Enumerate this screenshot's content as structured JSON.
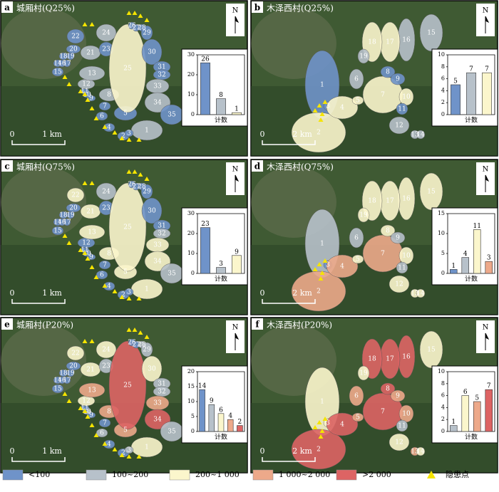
{
  "panels": [
    {
      "label": "a",
      "title": "城厢村(Q25%)",
      "north": "N",
      "scale": [
        "0",
        "1 km"
      ],
      "zone_labels": [
        "1",
        "2",
        "3",
        "4",
        "5",
        "6",
        "7",
        "8",
        "9",
        "10",
        "11",
        "12",
        "13",
        "14",
        "15",
        "16",
        "17",
        "18",
        "19",
        "20",
        "21",
        "22",
        "23",
        "24",
        "25",
        "26",
        "27",
        "28",
        "29",
        "30",
        "31",
        "32",
        "33",
        "34",
        "35"
      ],
      "zone_colors": [
        "#b7c1ca",
        "#6f93c9",
        "#6f93c9",
        "#6f93c9",
        "#6f93c9",
        "#6f93c9",
        "#6f93c9",
        "#b7c1ca",
        "#6f93c9",
        "#6f93c9",
        "#6f93c9",
        "#b7c1ca",
        "#b7c1ca",
        "#6f93c9",
        "#6f93c9",
        "#6f93c9",
        "#6f93c9",
        "#6f93c9",
        "#6f93c9",
        "#6f93c9",
        "#b7c1ca",
        "#6f93c9",
        "#6f93c9",
        "#b7c1ca",
        "#fbf6cc",
        "#6f93c9",
        "#6f93c9",
        "#6f93c9",
        "#6f93c9",
        "#6f93c9",
        "#6f93c9",
        "#6f93c9",
        "#b7c1ca",
        "#b7c1ca",
        "#6f93c9"
      ],
      "chart": {
        "type": "bar",
        "values": [
          26,
          8,
          1
        ],
        "colors": [
          "#6f93c9",
          "#b7c1ca",
          "#fbf6cc"
        ],
        "ylim": [
          0,
          30
        ],
        "yticks": [
          0,
          10,
          20,
          30
        ],
        "xlabel": "计数"
      }
    },
    {
      "label": "b",
      "title": "木泽西村(Q25%)",
      "north": "N",
      "scale": [
        "0",
        "2 km"
      ],
      "zone_labels": [
        "1",
        "2",
        "3",
        "4",
        "5",
        "6",
        "7",
        "8",
        "9",
        "10",
        "11",
        "12",
        "13",
        "14",
        "15",
        "16",
        "17",
        "18",
        "19"
      ],
      "zone_colors": [
        "#6f93c9",
        "#fbf6cc",
        "#6f93c9",
        "#fbf6cc",
        "#fbf6cc",
        "#b7c1ca",
        "#fbf6cc",
        "#6f93c9",
        "#6f93c9",
        "#fbf6cc",
        "#6f93c9",
        "#b7c1ca",
        "#b7c1ca",
        "#b7c1ca",
        "#b7c1ca",
        "#b7c1ca",
        "#fbf6cc",
        "#fbf6cc",
        "#b7c1ca"
      ],
      "chart": {
        "type": "bar",
        "values": [
          5,
          7,
          7
        ],
        "colors": [
          "#6f93c9",
          "#b7c1ca",
          "#fbf6cc"
        ],
        "ylim": [
          0,
          10
        ],
        "yticks": [
          0,
          2,
          4,
          6,
          8,
          10
        ],
        "xlabel": "计数"
      }
    },
    {
      "label": "c",
      "title": "城厢村(Q75%)",
      "north": "N",
      "scale": [
        "0",
        "1 km"
      ],
      "zone_labels": [
        "1",
        "2",
        "3",
        "4",
        "5",
        "6",
        "7",
        "8",
        "9",
        "10",
        "11",
        "12",
        "13",
        "14",
        "15",
        "16",
        "17",
        "18",
        "19",
        "20",
        "21",
        "22",
        "23",
        "24",
        "25",
        "26",
        "27",
        "28",
        "29",
        "30",
        "31",
        "32",
        "33",
        "34",
        "35"
      ],
      "zone_colors": [
        "#fbf6cc",
        "#6f93c9",
        "#6f93c9",
        "#6f93c9",
        "#fbf6cc",
        "#6f93c9",
        "#6f93c9",
        "#fbf6cc",
        "#6f93c9",
        "#6f93c9",
        "#6f93c9",
        "#6f93c9",
        "#fbf6cc",
        "#6f93c9",
        "#6f93c9",
        "#6f93c9",
        "#6f93c9",
        "#6f93c9",
        "#6f93c9",
        "#6f93c9",
        "#fbf6cc",
        "#fbf6cc",
        "#6f93c9",
        "#b7c1ca",
        "#fbf6cc",
        "#6f93c9",
        "#6f93c9",
        "#6f93c9",
        "#6f93c9",
        "#6f93c9",
        "#6f93c9",
        "#b7c1ca",
        "#fbf6cc",
        "#fbf6cc",
        "#b7c1ca"
      ],
      "chart": {
        "type": "bar",
        "values": [
          23,
          3,
          9
        ],
        "colors": [
          "#6f93c9",
          "#b7c1ca",
          "#fbf6cc"
        ],
        "ylim": [
          0,
          30
        ],
        "yticks": [
          0,
          10,
          20,
          30
        ],
        "xlabel": "计数"
      }
    },
    {
      "label": "d",
      "title": "木泽西村(Q75%)",
      "north": "N",
      "scale": [
        "0",
        "2 km"
      ],
      "zone_labels": [
        "1",
        "2",
        "3",
        "4",
        "5",
        "6",
        "7",
        "8",
        "9",
        "10",
        "11",
        "12",
        "13",
        "14",
        "15",
        "16",
        "17",
        "18",
        "19"
      ],
      "zone_colors": [
        "#b7c1ca",
        "#eda98a",
        "#6f93c9",
        "#eda98a",
        "#fbf6cc",
        "#b7c1ca",
        "#eda98a",
        "#fbf6cc",
        "#b7c1ca",
        "#fbf6cc",
        "#b7c1ca",
        "#fbf6cc",
        "#fbf6cc",
        "#fbf6cc",
        "#fbf6cc",
        "#fbf6cc",
        "#fbf6cc",
        "#fbf6cc",
        "#fbf6cc"
      ],
      "chart": {
        "type": "bar",
        "values": [
          1,
          4,
          11,
          3
        ],
        "colors": [
          "#6f93c9",
          "#b7c1ca",
          "#fbf6cc",
          "#eda98a"
        ],
        "ylim": [
          0,
          15
        ],
        "yticks": [
          0,
          5,
          10,
          15
        ],
        "xlabel": "计数"
      }
    },
    {
      "label": "e",
      "title": "城厢村(P20%)",
      "north": "N",
      "scale": [
        "0",
        "1 km"
      ],
      "zone_labels": [
        "1",
        "2",
        "3",
        "4",
        "5",
        "6",
        "7",
        "8",
        "9",
        "10",
        "11",
        "12",
        "13",
        "14",
        "15",
        "16",
        "17",
        "18",
        "19",
        "20",
        "21",
        "22",
        "23",
        "24",
        "25",
        "26",
        "27",
        "28",
        "29",
        "30",
        "31",
        "32",
        "33",
        "34",
        "35"
      ],
      "zone_colors": [
        "#fbf6cc",
        "#6f93c9",
        "#b7c1ca",
        "#6f93c9",
        "#eda98a",
        "#b7c1ca",
        "#6f93c9",
        "#eda98a",
        "#6f93c9",
        "#b7c1ca",
        "#6f93c9",
        "#fbf6cc",
        "#eda98a",
        "#6f93c9",
        "#6f93c9",
        "#6f93c9",
        "#6f93c9",
        "#6f93c9",
        "#6f93c9",
        "#6f93c9",
        "#fbf6cc",
        "#fbf6cc",
        "#b7c1ca",
        "#fbf6cc",
        "#dd6464",
        "#6f93c9",
        "#6f93c9",
        "#b7c1ca",
        "#b7c1ca",
        "#fbf6cc",
        "#b7c1ca",
        "#b7c1ca",
        "#eda98a",
        "#dd6464",
        "#b7c1ca"
      ],
      "chart": {
        "type": "bar",
        "values": [
          14,
          9,
          6,
          4,
          2
        ],
        "colors": [
          "#6f93c9",
          "#b7c1ca",
          "#fbf6cc",
          "#eda98a",
          "#dd6464"
        ],
        "ylim": [
          0,
          20
        ],
        "yticks": [
          0,
          5,
          10,
          15,
          20
        ],
        "xlabel": "计数"
      }
    },
    {
      "label": "f",
      "title": "木泽西村(P20%)",
      "north": "N",
      "scale": [
        "0",
        "2 km"
      ],
      "zone_labels": [
        "1",
        "2",
        "3",
        "4",
        "5",
        "6",
        "7",
        "8",
        "9",
        "10",
        "11",
        "12",
        "13",
        "14",
        "15",
        "16",
        "17",
        "18",
        "19"
      ],
      "zone_colors": [
        "#fbf6cc",
        "#dd6464",
        "#fbf6cc",
        "#dd6464",
        "#eda98a",
        "#eda98a",
        "#dd6464",
        "#dd6464",
        "#eda98a",
        "#eda98a",
        "#b7c1ca",
        "#fbf6cc",
        "#eda98a",
        "#fbf6cc",
        "#fbf6cc",
        "#dd6464",
        "#dd6464",
        "#dd6464",
        "#fbf6cc"
      ],
      "chart": {
        "type": "bar",
        "values": [
          1,
          6,
          5,
          7
        ],
        "colors": [
          "#b7c1ca",
          "#fbf6cc",
          "#eda98a",
          "#dd6464"
        ],
        "ylim": [
          0,
          10
        ],
        "yticks": [
          0,
          2,
          4,
          6,
          8,
          10
        ],
        "xlabel": "计数"
      }
    }
  ],
  "legend": [
    {
      "label": "<100",
      "color": "#6f93c9"
    },
    {
      "label": "100~200",
      "color": "#b7c1ca"
    },
    {
      "label": "200~1 000",
      "color": "#fbf6cc"
    },
    {
      "label": "1 000~2 000",
      "color": "#eda98a"
    },
    {
      "label": ">2 000",
      "color": "#dd6464"
    },
    {
      "label": "隐患点",
      "color": "#f5e400"
    }
  ]
}
